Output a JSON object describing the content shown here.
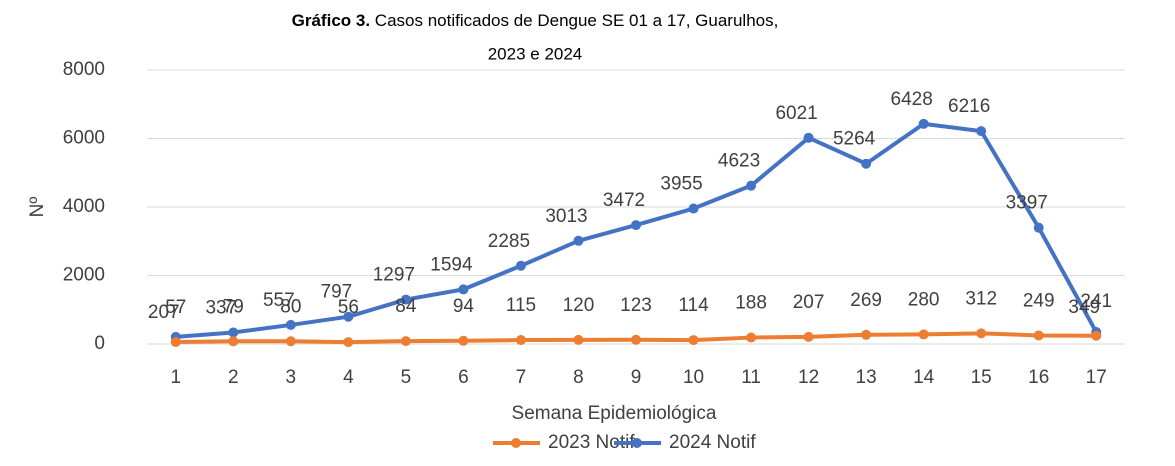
{
  "chart_data": {
    "type": "line",
    "title": [
      "Gráfico 3.",
      "Casos notificados de Dengue SE 01 a 17, Guarulhos,",
      "2023 e 2024"
    ],
    "x_label": "Semana Epidemiológica",
    "y_label": "Nº",
    "categories": [
      "1",
      "2",
      "3",
      "4",
      "5",
      "6",
      "7",
      "8",
      "9",
      "10",
      "11",
      "12",
      "13",
      "14",
      "15",
      "16",
      "17"
    ],
    "series": [
      {
        "name": "2023 Notif",
        "color": "#ED7D31",
        "values": [
          57,
          79,
          80,
          56,
          84,
          94,
          115,
          120,
          123,
          114,
          188,
          207,
          269,
          280,
          312,
          249,
          241
        ]
      },
      {
        "name": "2024 Notif",
        "color": "#4472C4",
        "values": [
          207,
          337,
          557,
          797,
          1297,
          1594,
          2285,
          3013,
          3472,
          3955,
          4623,
          6021,
          5264,
          6428,
          6216,
          3397,
          349
        ]
      }
    ],
    "ylim": [
      0,
      8000
    ],
    "yticks": [
      0,
      2000,
      4000,
      6000,
      8000
    ],
    "grid": true,
    "legend": "bottom"
  }
}
